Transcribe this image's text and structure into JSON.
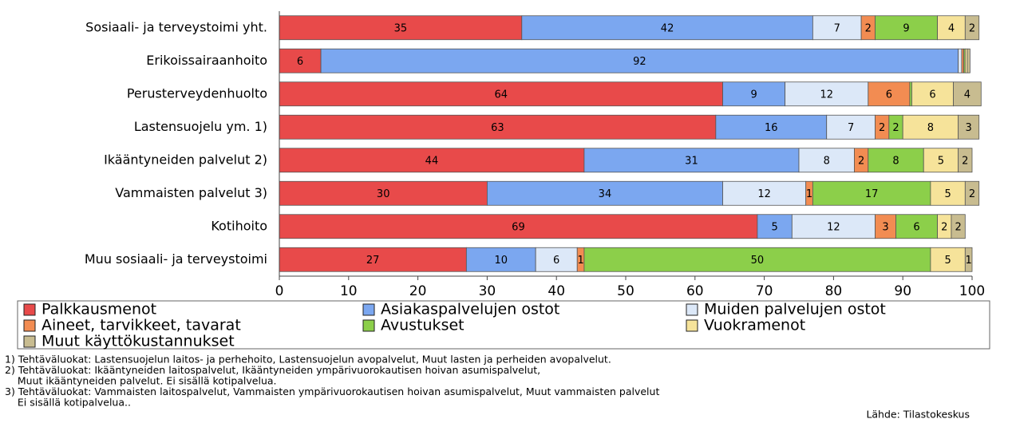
{
  "chart_data": {
    "type": "stacked_barh",
    "categories": [
      "Sosiaali- ja terveystoimi yht.",
      "Erikoissairaanhoito",
      "Perusterveydenhuolto",
      "Lastensuojelu ym. 1)",
      "Ikääntyneiden palvelut 2)",
      "Vammaisten palvelut 3)",
      "Kotihoito",
      "Muu sosiaali- ja terveystoimi"
    ],
    "series": [
      {
        "name": "Palkkausmenot",
        "color": "#e84a4a",
        "values": [
          35,
          6,
          64,
          63,
          44,
          30,
          69,
          27
        ]
      },
      {
        "name": "Asiakaspalvelujen ostot",
        "color": "#7ba7f0",
        "values": [
          42,
          92,
          9,
          16,
          31,
          34,
          5,
          10
        ]
      },
      {
        "name": "Muiden palvelujen ostot",
        "color": "#dce8f8",
        "values": [
          7,
          0.5,
          12,
          7,
          8,
          12,
          12,
          6
        ]
      },
      {
        "name": "Aineet, tarvikkeet, tavarat",
        "color": "#f28c52",
        "values": [
          2,
          0.3,
          6,
          2,
          2,
          1,
          3,
          1
        ]
      },
      {
        "name": "Avustukset",
        "color": "#8ccf4a",
        "values": [
          9,
          0.2,
          0.3,
          2,
          8,
          17,
          6,
          50
        ]
      },
      {
        "name": "Vuokramenot",
        "color": "#f6e39a",
        "values": [
          4,
          0.3,
          6,
          8,
          5,
          5,
          2,
          5
        ]
      },
      {
        "name": "Muut käyttökustannukset",
        "color": "#c8bc90",
        "values": [
          2,
          0.4,
          4,
          3,
          2,
          2,
          2,
          1
        ]
      }
    ],
    "xlim": [
      0,
      100
    ],
    "xticks": [
      0,
      10,
      20,
      30,
      40,
      50,
      60,
      70,
      80,
      90,
      100
    ],
    "grid": false,
    "footnotes": [
      "1) Tehtäväluokat: Lastensuojelun laitos- ja perhehoito, Lastensuojelun avopalvelut, Muut lasten ja perheiden avopalvelut.",
      "2) Tehtäväluokat: Ikääntyneiden laitospalvelut, Ikääntyneiden ympärivuorokautisen hoivan asumispalvelut,",
      "    Muut ikääntyneiden palvelut. Ei sisällä kotipalvelua.",
      "3) Tehtäväluokat: Vammaisten laitospalvelut, Vammaisten ympärivuorokautisen hoivan asumispalvelut, Muut vammaisten palvelut",
      "    Ei sisällä kotipalvelua.."
    ],
    "source": "Lähde: Tilastokeskus"
  }
}
